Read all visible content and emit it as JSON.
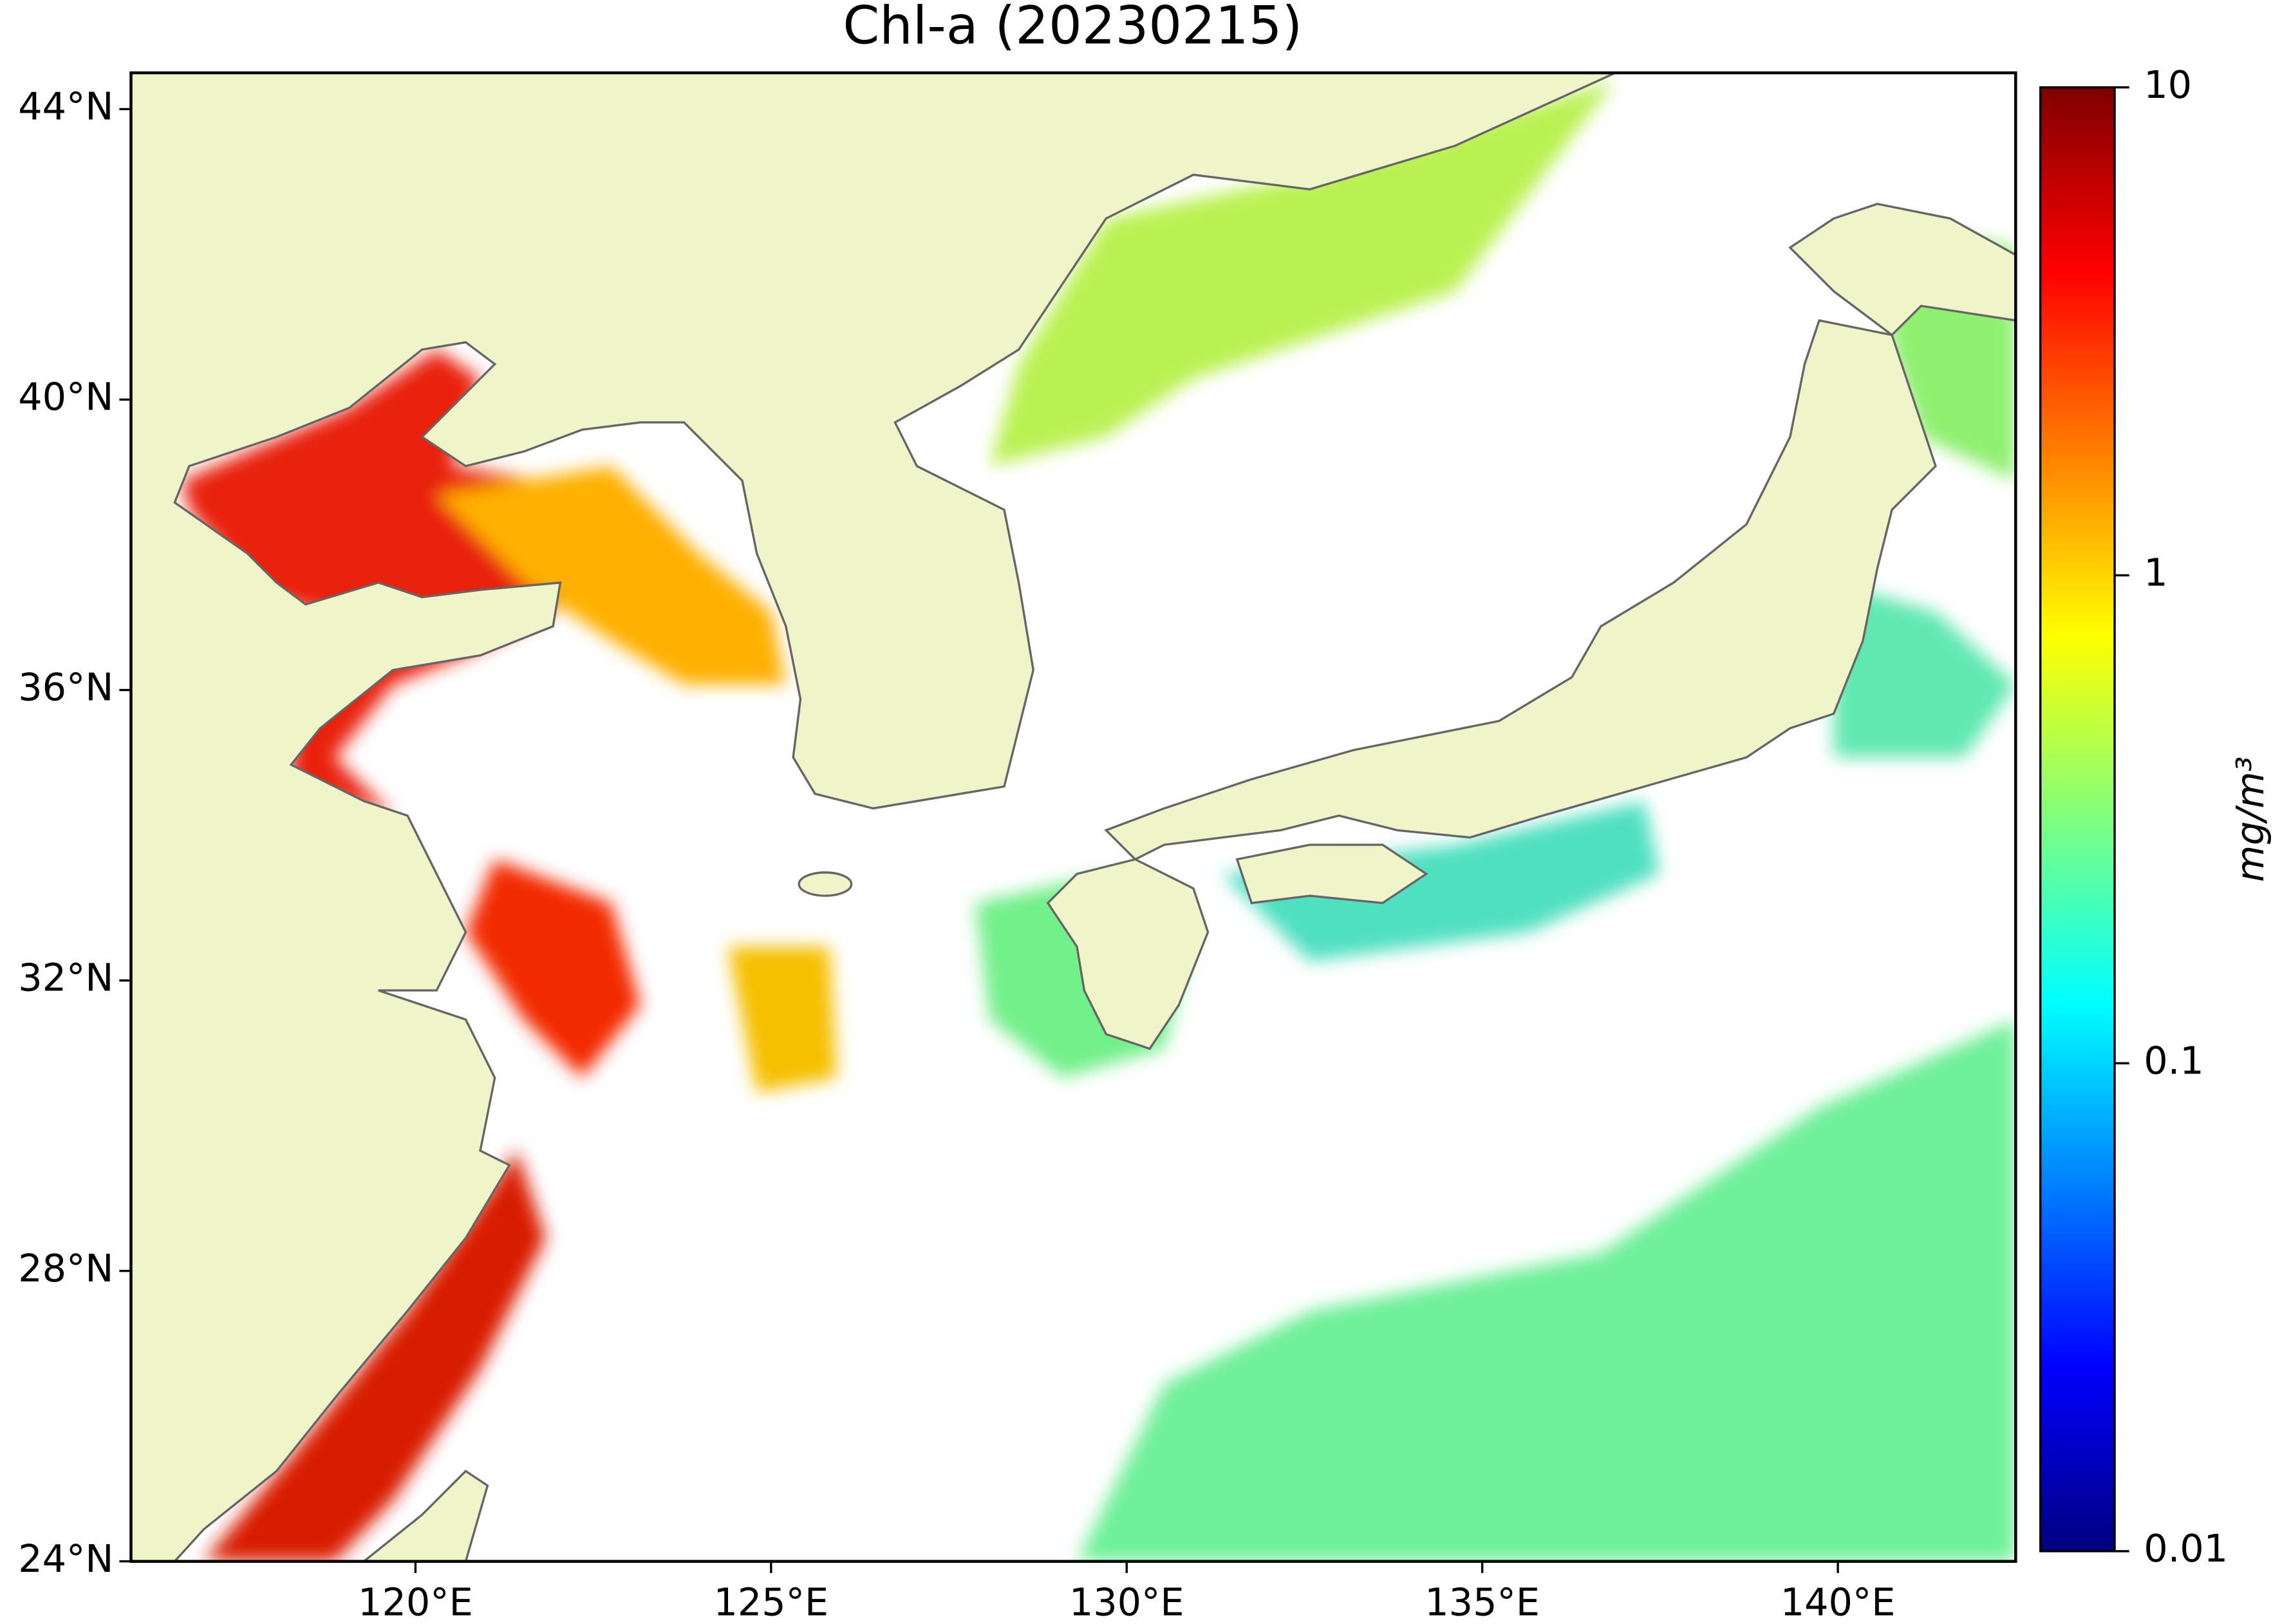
{
  "chart_data": {
    "type": "map",
    "title": "Chl-a (20230215)",
    "xlim": [
      116,
      142.5
    ],
    "ylim": [
      24,
      44.5
    ],
    "xticks": [
      {
        "value": 120,
        "label": "120°E"
      },
      {
        "value": 125,
        "label": "125°E"
      },
      {
        "value": 130,
        "label": "130°E"
      },
      {
        "value": 135,
        "label": "135°E"
      },
      {
        "value": 140,
        "label": "140°E"
      }
    ],
    "yticks": [
      {
        "value": 24,
        "label": "24°N"
      },
      {
        "value": 28,
        "label": "28°N"
      },
      {
        "value": 32,
        "label": "32°N"
      },
      {
        "value": 36,
        "label": "36°N"
      },
      {
        "value": 40,
        "label": "40°N"
      },
      {
        "value": 44,
        "label": "44°N"
      }
    ],
    "colorbar": {
      "label": "mg/m³",
      "scale": "log",
      "lim": [
        0.01,
        10
      ],
      "ticks": [
        0.01,
        0.1,
        1,
        10
      ],
      "colormap": [
        "#00007f",
        "#0000ff",
        "#007fff",
        "#00ffff",
        "#7fff7f",
        "#ffff00",
        "#ff7f00",
        "#ff0000",
        "#7f0000"
      ]
    }
  }
}
